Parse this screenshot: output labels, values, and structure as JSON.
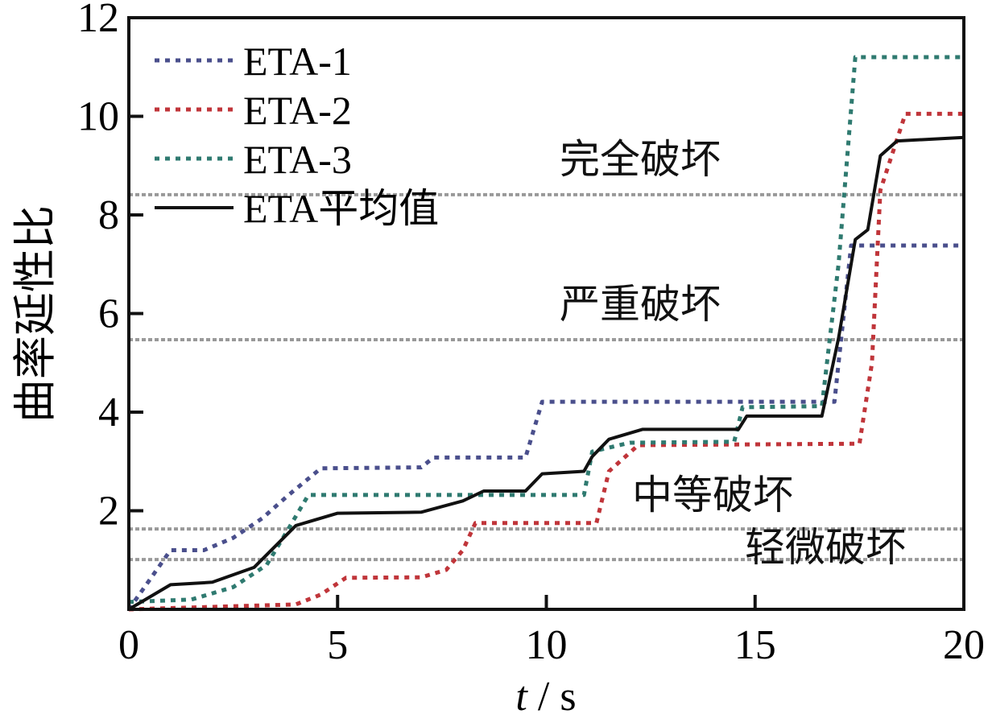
{
  "chart_data": {
    "type": "line",
    "xlabel_italic": "t",
    "xlabel_unit": "/ s",
    "ylabel": "曲率延性比",
    "xlim": [
      0,
      20
    ],
    "ylim": [
      0,
      12
    ],
    "xticks": [
      0,
      5,
      10,
      15,
      20
    ],
    "yticks": [
      0,
      2,
      4,
      6,
      8,
      10,
      12
    ],
    "legend_position": "top-left",
    "thresholds": [
      {
        "value": 8.41,
        "label": "完全破坏"
      },
      {
        "value": 5.47,
        "label": "严重破坏"
      },
      {
        "value": 1.63,
        "label": "中等破坏"
      },
      {
        "value": 1.01,
        "label": "轻微破坏"
      }
    ],
    "series": [
      {
        "name": "ETA-1",
        "color": "#4a4f8c",
        "style": "dotted",
        "points": [
          [
            0,
            0
          ],
          [
            0.5,
            0.6
          ],
          [
            1,
            1.2
          ],
          [
            1.8,
            1.2
          ],
          [
            2.5,
            1.45
          ],
          [
            3.2,
            1.85
          ],
          [
            3.8,
            2.3
          ],
          [
            4.6,
            2.86
          ],
          [
            7,
            2.88
          ],
          [
            7.3,
            3.08
          ],
          [
            9.5,
            3.08
          ],
          [
            9.9,
            4.21
          ],
          [
            16.9,
            4.21
          ],
          [
            17.3,
            7.38
          ],
          [
            20,
            7.38
          ]
        ]
      },
      {
        "name": "ETA-2",
        "color": "#c0353a",
        "style": "dotted",
        "points": [
          [
            0,
            0
          ],
          [
            4,
            0.1
          ],
          [
            4.6,
            0.3
          ],
          [
            5.2,
            0.64
          ],
          [
            7,
            0.65
          ],
          [
            7.6,
            0.8
          ],
          [
            8,
            1.2
          ],
          [
            8.3,
            1.75
          ],
          [
            11.2,
            1.75
          ],
          [
            11.5,
            2.8
          ],
          [
            12.2,
            3.33
          ],
          [
            17.5,
            3.36
          ],
          [
            17.8,
            5
          ],
          [
            18,
            8.5
          ],
          [
            18.6,
            10.05
          ],
          [
            20,
            10.05
          ]
        ]
      },
      {
        "name": "ETA-3",
        "color": "#2f7a70",
        "style": "dotted",
        "points": [
          [
            0,
            0.15
          ],
          [
            1.5,
            0.2
          ],
          [
            2.5,
            0.45
          ],
          [
            3.3,
            0.9
          ],
          [
            3.8,
            1.6
          ],
          [
            4.3,
            2.32
          ],
          [
            10.9,
            2.32
          ],
          [
            11.1,
            3.2
          ],
          [
            12,
            3.38
          ],
          [
            14.5,
            3.4
          ],
          [
            14.7,
            4.1
          ],
          [
            16.6,
            4.12
          ],
          [
            17,
            7
          ],
          [
            17.4,
            11.2
          ],
          [
            20,
            11.2
          ]
        ]
      },
      {
        "name": "ETA平均值",
        "color": "#111111",
        "style": "solid",
        "points": [
          [
            0,
            0
          ],
          [
            1,
            0.5
          ],
          [
            2,
            0.55
          ],
          [
            3,
            0.85
          ],
          [
            4,
            1.7
          ],
          [
            5,
            1.95
          ],
          [
            7,
            1.97
          ],
          [
            8,
            2.2
          ],
          [
            8.5,
            2.4
          ],
          [
            9.5,
            2.4
          ],
          [
            9.9,
            2.75
          ],
          [
            10.9,
            2.8
          ],
          [
            11.1,
            3.1
          ],
          [
            11.5,
            3.45
          ],
          [
            12.3,
            3.65
          ],
          [
            14.6,
            3.65
          ],
          [
            14.8,
            3.92
          ],
          [
            16.6,
            3.92
          ],
          [
            17,
            5.5
          ],
          [
            17.4,
            7.5
          ],
          [
            17.7,
            7.7
          ],
          [
            18,
            9.2
          ],
          [
            18.4,
            9.5
          ],
          [
            20,
            9.57
          ]
        ]
      }
    ]
  }
}
